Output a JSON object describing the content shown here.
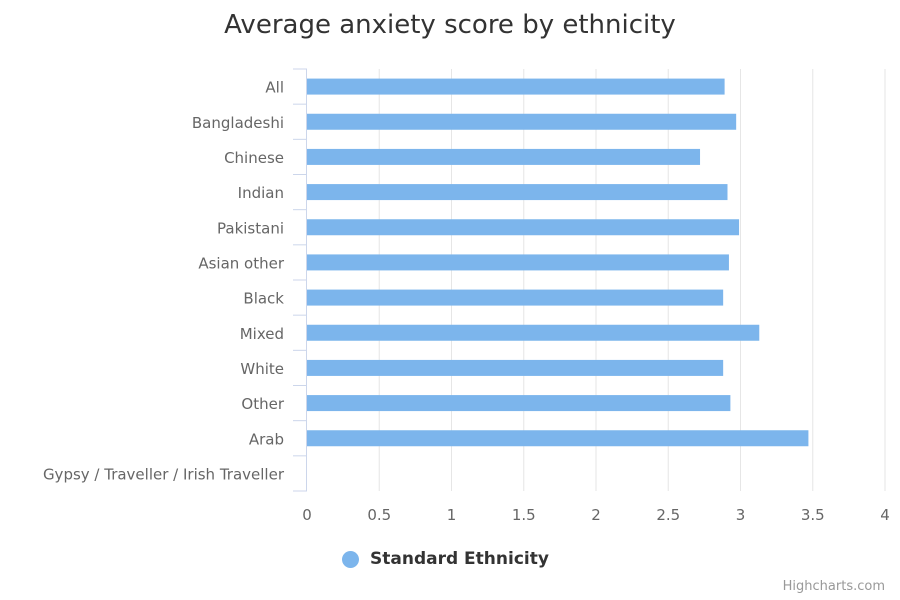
{
  "chart_data": {
    "type": "bar",
    "orientation": "horizontal",
    "title": "Average anxiety score by ethnicity",
    "categories": [
      "All",
      "Bangladeshi",
      "Chinese",
      "Indian",
      "Pakistani",
      "Asian other",
      "Black",
      "Mixed",
      "White",
      "Other",
      "Arab",
      "Gypsy / Traveller / Irish Traveller"
    ],
    "series": [
      {
        "name": "Standard Ethnicity",
        "color": "#7cb5ec",
        "values": [
          2.89,
          2.97,
          2.72,
          2.91,
          2.99,
          2.92,
          2.88,
          3.13,
          2.88,
          2.93,
          3.47,
          null
        ]
      }
    ],
    "xlim": [
      0,
      4
    ],
    "ticks": [
      "0",
      "0.5",
      "1",
      "1.5",
      "2",
      "2.5",
      "3",
      "3.5",
      "4"
    ],
    "grid": true,
    "legend_position": "bottom-center"
  },
  "credits": "Highcharts.com"
}
